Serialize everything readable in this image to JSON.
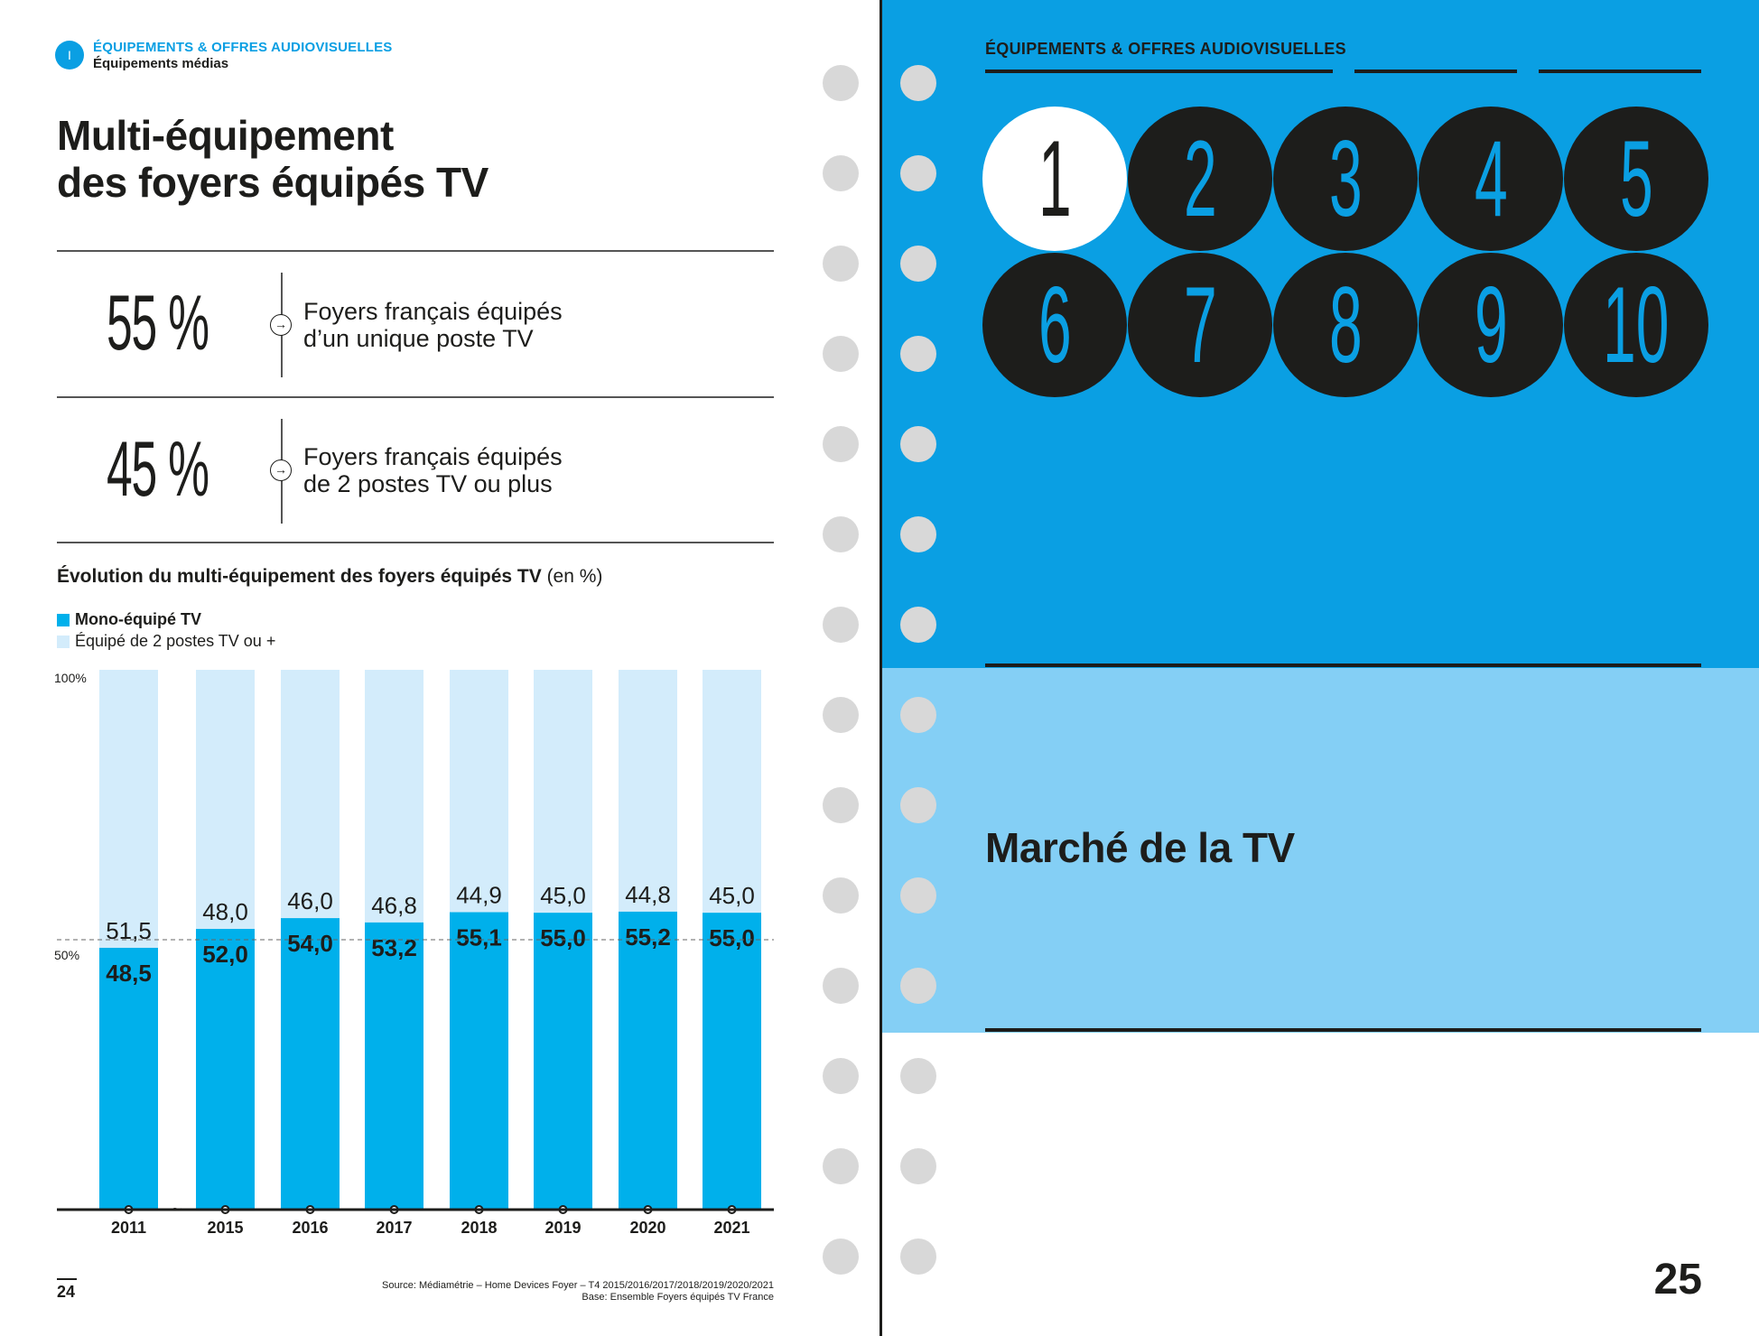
{
  "left_page": {
    "section_badge": "I",
    "section_title": "ÉQUIPEMENTS & OFFRES AUDIOVISUELLES",
    "section_subtitle": "Équipements médias",
    "title_line1": "Multi-équipement",
    "title_line2": "des foyers équipés TV",
    "stats": [
      {
        "value": "55 %",
        "line1": "Foyers français équipés",
        "line2": "d’un unique poste TV"
      },
      {
        "value": "45 %",
        "line1": "Foyers français équipés",
        "line2": "de 2 postes TV ou plus"
      }
    ],
    "chart_title_bold": "Évolution du multi-équipement des foyers équipés TV",
    "chart_title_unit": " (en %)",
    "page_number": "24",
    "source_line1": "Source: Médiamétrie – Home Devices Foyer – T4 2015/2016/2017/2018/2019/2020/2021",
    "source_line2": "Base: Ensemble Foyers équipés TV France",
    "axis_break": "~"
  },
  "chart_data": {
    "type": "bar",
    "stacked": true,
    "title": "Évolution du multi-équipement des foyers équipés TV (en %)",
    "categories": [
      "2011",
      "2015",
      "2016",
      "2017",
      "2018",
      "2019",
      "2020",
      "2021"
    ],
    "series": [
      {
        "name": "Mono-équipé TV",
        "values": [
          48.5,
          52.0,
          54.0,
          53.2,
          55.1,
          55.0,
          55.2,
          55.0
        ],
        "labels": [
          "48,5",
          "52,0",
          "54,0",
          "53,2",
          "55,1",
          "55,0",
          "55,2",
          "55,0"
        ],
        "color": "#00b0eb"
      },
      {
        "name": "Équipé de 2 postes TV ou +",
        "values": [
          51.5,
          48.0,
          46.0,
          46.8,
          44.9,
          45.0,
          44.8,
          45.0
        ],
        "labels": [
          "51,5",
          "48,0",
          "46,0",
          "46,8",
          "44,9",
          "45,0",
          "44,8",
          "45,0"
        ],
        "color": "#d3ecfb"
      }
    ],
    "ylim": [
      0,
      100
    ],
    "y_ticks": [
      "100%",
      "50%"
    ],
    "reference_line": 50
  },
  "right_page": {
    "section_title": "ÉQUIPEMENTS & OFFRES AUDIOVISUELLES",
    "chapters": [
      "1",
      "2",
      "3",
      "4",
      "5",
      "6",
      "7",
      "8",
      "9",
      "10"
    ],
    "active_chapter": "1",
    "chapter_title": "Marché de la TV",
    "page_number": "25"
  },
  "colors": {
    "blue": "#0a9fe3",
    "light_blue": "#84cff5",
    "bar_dark": "#00b0eb",
    "bar_light": "#d3ecfb",
    "ink": "#1d1d1b"
  }
}
